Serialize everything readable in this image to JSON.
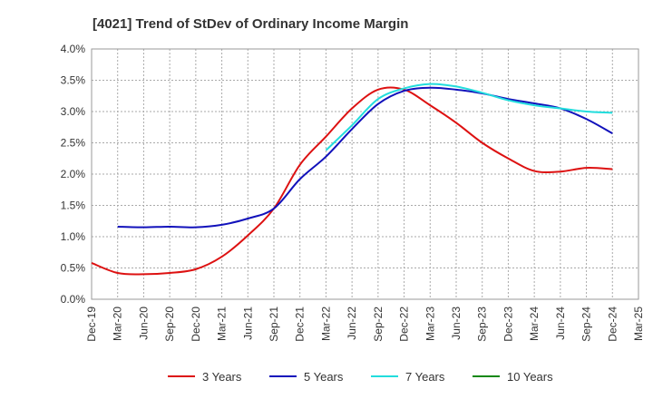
{
  "chart_data": {
    "type": "line",
    "title": "[4021]  Trend of StDev of Ordinary Income Margin",
    "xlabel": "",
    "ylabel": "",
    "ylim": [
      0,
      4.0
    ],
    "y_ticks": [
      "0.0%",
      "0.5%",
      "1.0%",
      "1.5%",
      "2.0%",
      "2.5%",
      "3.0%",
      "3.5%",
      "4.0%"
    ],
    "x_ticks": [
      "Dec-19",
      "Mar-20",
      "Jun-20",
      "Sep-20",
      "Dec-20",
      "Mar-21",
      "Jun-21",
      "Sep-21",
      "Dec-21",
      "Mar-22",
      "Jun-22",
      "Sep-22",
      "Dec-22",
      "Mar-23",
      "Jun-23",
      "Sep-23",
      "Dec-23",
      "Mar-24",
      "Jun-24",
      "Sep-24",
      "Dec-24",
      "Mar-25"
    ],
    "grid": true,
    "legend_position": "bottom",
    "series": [
      {
        "name": "3 Years",
        "color": "#dd1111",
        "values": [
          0.58,
          0.42,
          0.4,
          0.42,
          0.48,
          0.68,
          1.02,
          1.45,
          2.15,
          2.6,
          3.05,
          3.35,
          3.35,
          3.1,
          2.82,
          2.5,
          2.25,
          2.05,
          2.04,
          2.1,
          2.08,
          null
        ]
      },
      {
        "name": "5 Years",
        "color": "#1111bb",
        "values": [
          null,
          1.16,
          1.15,
          1.16,
          1.15,
          1.19,
          1.29,
          1.45,
          1.92,
          2.28,
          2.72,
          3.12,
          3.33,
          3.38,
          3.35,
          3.29,
          3.2,
          3.13,
          3.05,
          2.88,
          2.65,
          null
        ]
      },
      {
        "name": "7 Years",
        "color": "#22dddd",
        "values": [
          null,
          null,
          null,
          null,
          null,
          null,
          null,
          null,
          null,
          2.38,
          2.78,
          3.2,
          3.37,
          3.44,
          3.4,
          3.3,
          3.18,
          3.1,
          3.05,
          3.0,
          2.98,
          null
        ]
      },
      {
        "name": "10 Years",
        "color": "#118811",
        "values": [
          null,
          null,
          null,
          null,
          null,
          null,
          null,
          null,
          null,
          null,
          null,
          null,
          null,
          null,
          null,
          null,
          null,
          null,
          null,
          null,
          null,
          null
        ]
      }
    ]
  }
}
